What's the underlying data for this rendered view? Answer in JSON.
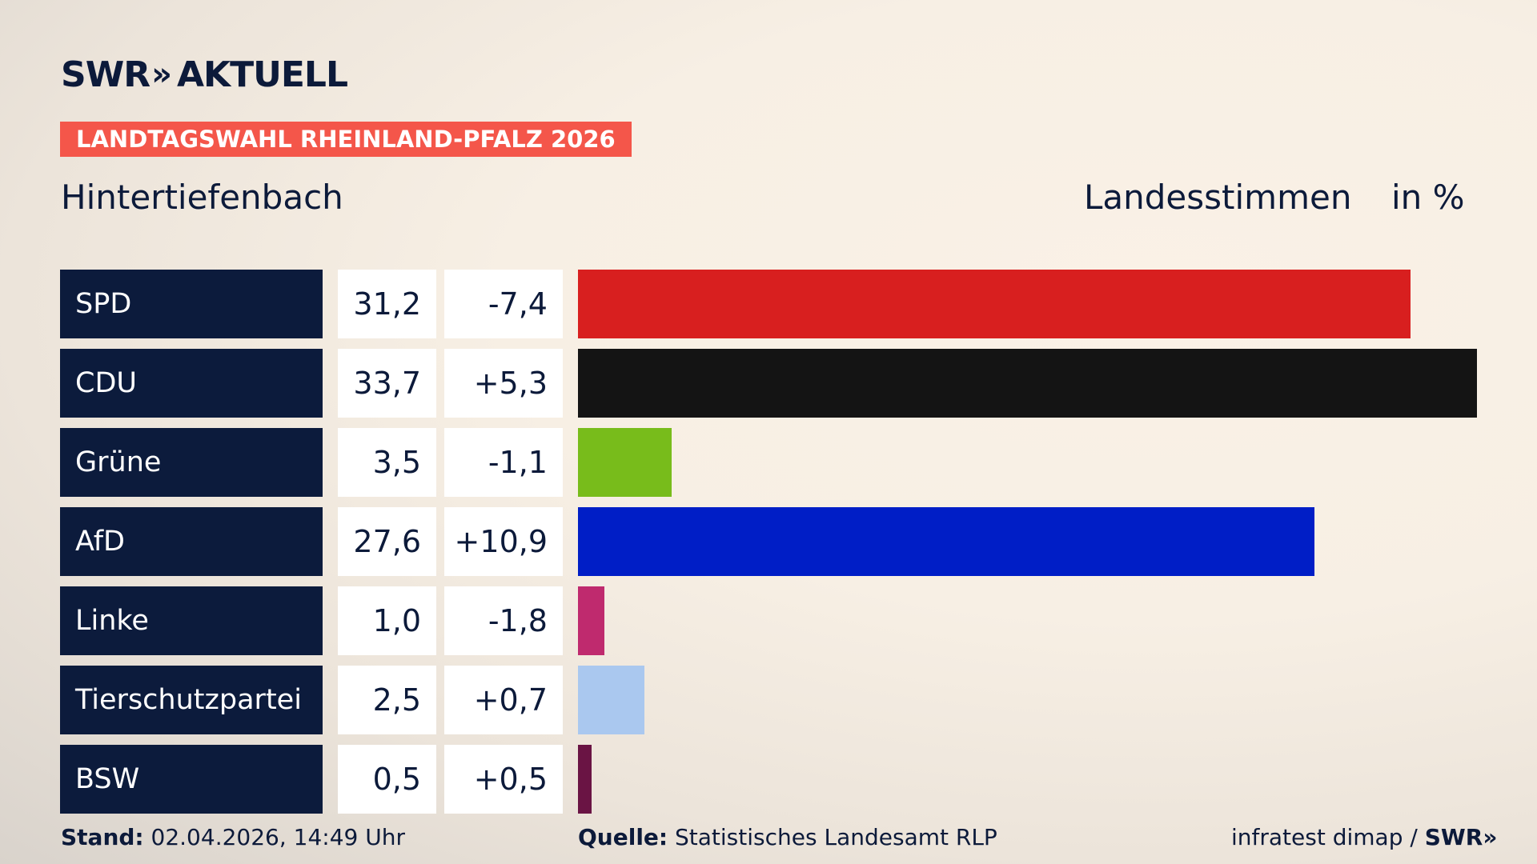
{
  "header": {
    "brand": "SWR",
    "brand_chevrons": "»",
    "brand_suffix": "AKTUELL",
    "badge": "LANDTAGSWAHL RHEINLAND-PFALZ 2026",
    "badge_color": "#f4564a",
    "place": "Hintertiefenbach",
    "measure": "Landesstimmen",
    "unit": "in %"
  },
  "chart_data": {
    "type": "bar",
    "orientation": "horizontal",
    "categories": [
      "SPD",
      "CDU",
      "Grüne",
      "AfD",
      "Linke",
      "Tierschutzpartei",
      "BSW"
    ],
    "series": [
      {
        "name": "Landesstimmen",
        "values": [
          31.2,
          33.7,
          3.5,
          27.6,
          1.0,
          2.5,
          0.5
        ]
      }
    ],
    "value_labels": [
      "31,2",
      "33,7",
      "3,5",
      "27,6",
      "1,0",
      "2,5",
      "0,5"
    ],
    "diff_labels": [
      "-7,4",
      "+5,3",
      "-1,1",
      "+10,9",
      "-1,8",
      "+0,7",
      "+0,5"
    ],
    "diffs": [
      -7.4,
      5.3,
      -1.1,
      10.9,
      -1.8,
      0.7,
      0.5
    ],
    "colors": [
      "#d81f1f",
      "#141414",
      "#78bc1b",
      "#001ec6",
      "#bf2a6e",
      "#aac8ef",
      "#6a1444"
    ],
    "xlim": [
      0,
      33.7
    ]
  },
  "footer": {
    "stand_label": "Stand:",
    "stand_value": "02.04.2026, 14:49 Uhr",
    "source_label": "Quelle:",
    "source_value": "Statistisches Landesamt RLP",
    "credit": "infratest dimap /",
    "credit_brand": "SWR»"
  }
}
